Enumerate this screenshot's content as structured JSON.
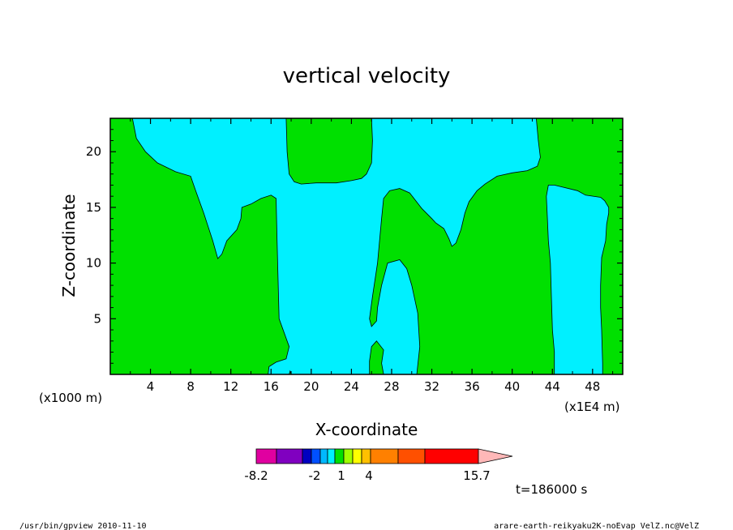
{
  "chart_data": {
    "type": "heatmap",
    "title": "vertical velocity",
    "xlabel": "X-coordinate",
    "ylabel": "Z-coordinate",
    "x_unit_left": "(x1000 m)",
    "x_unit_right": "(x1E4 m)",
    "xlim": [
      0,
      51
    ],
    "ylim": [
      0,
      23
    ],
    "x_ticks": [
      4,
      8,
      12,
      16,
      20,
      24,
      28,
      32,
      36,
      40,
      44,
      48
    ],
    "y_ticks": [
      5,
      10,
      15,
      20
    ],
    "colors": {
      "background_field": "#00e000",
      "downdraft": "#00f0ff"
    },
    "fields": {
      "background_field_value": "1 to 2 (green band)",
      "downdraft_value": "-1 to 1 (cyan band)"
    },
    "cyan_regions": [
      [
        [
          2.2,
          23
        ],
        [
          2.6,
          21.2
        ],
        [
          3.5,
          20.0
        ],
        [
          4.7,
          19.0
        ],
        [
          6.5,
          18.2
        ],
        [
          8.0,
          17.8
        ],
        [
          8.5,
          16.5
        ],
        [
          9.3,
          14.5
        ],
        [
          10.2,
          12.0
        ],
        [
          10.7,
          10.4
        ],
        [
          11.1,
          10.8
        ],
        [
          11.6,
          12.0
        ],
        [
          12.6,
          13.0
        ],
        [
          13.0,
          14.0
        ],
        [
          13.1,
          15.0
        ],
        [
          14.0,
          15.3
        ],
        [
          15.0,
          15.8
        ],
        [
          16.0,
          16.1
        ],
        [
          16.5,
          15.8
        ],
        [
          16.6,
          12.0
        ],
        [
          16.8,
          5.0
        ],
        [
          17.8,
          2.5
        ],
        [
          17.5,
          1.4
        ],
        [
          16.5,
          1.1
        ],
        [
          15.8,
          0.7
        ],
        [
          15.7,
          0
        ],
        [
          17.8,
          0
        ],
        [
          17.9,
          0.3
        ],
        [
          18.0,
          0
        ],
        [
          25.8,
          0
        ],
        [
          25.8,
          1.2
        ],
        [
          26.0,
          2.5
        ],
        [
          26.5,
          3.0
        ],
        [
          27.2,
          2.2
        ],
        [
          27.0,
          1.0
        ],
        [
          27.2,
          0
        ],
        [
          30.5,
          0
        ],
        [
          30.8,
          2.5
        ],
        [
          30.6,
          5.5
        ],
        [
          30.0,
          8.0
        ],
        [
          29.5,
          9.5
        ],
        [
          28.8,
          10.3
        ],
        [
          27.6,
          10.0
        ],
        [
          27.0,
          8.0
        ],
        [
          26.6,
          6.0
        ],
        [
          26.5,
          4.8
        ],
        [
          26.0,
          4.3
        ],
        [
          25.8,
          5.0
        ],
        [
          26.1,
          7.0
        ],
        [
          26.6,
          10.0
        ],
        [
          27.0,
          14.0
        ],
        [
          27.2,
          15.8
        ],
        [
          27.8,
          16.5
        ],
        [
          28.8,
          16.7
        ],
        [
          29.8,
          16.3
        ],
        [
          31.0,
          14.9
        ],
        [
          32.0,
          14.0
        ],
        [
          32.4,
          13.6
        ],
        [
          33.2,
          13.1
        ],
        [
          33.7,
          12.2
        ],
        [
          34.0,
          11.5
        ],
        [
          34.4,
          11.8
        ],
        [
          34.9,
          13.0
        ],
        [
          35.3,
          14.5
        ],
        [
          35.7,
          15.5
        ],
        [
          36.5,
          16.5
        ],
        [
          37.3,
          17.1
        ],
        [
          38.5,
          17.8
        ],
        [
          40.0,
          18.1
        ],
        [
          41.5,
          18.3
        ],
        [
          42.5,
          18.7
        ],
        [
          42.8,
          19.5
        ],
        [
          42.6,
          21.0
        ],
        [
          42.4,
          23
        ],
        [
          26.0,
          23
        ],
        [
          26.1,
          21.0
        ],
        [
          26.0,
          19.0
        ],
        [
          25.5,
          18.0
        ],
        [
          25.0,
          17.6
        ],
        [
          24.0,
          17.4
        ],
        [
          22.5,
          17.2
        ],
        [
          20.5,
          17.2
        ],
        [
          19.0,
          17.1
        ],
        [
          18.3,
          17.3
        ],
        [
          17.8,
          18.0
        ],
        [
          17.6,
          20.0
        ],
        [
          17.5,
          23
        ]
      ],
      [
        [
          43.6,
          17.0
        ],
        [
          44.2,
          17.0
        ],
        [
          46.5,
          16.5
        ],
        [
          47.3,
          16.1
        ],
        [
          48.8,
          15.9
        ],
        [
          49.2,
          15.6
        ],
        [
          49.6,
          15.0
        ],
        [
          49.6,
          14.5
        ],
        [
          49.4,
          13.5
        ],
        [
          49.3,
          12.0
        ],
        [
          48.9,
          10.5
        ],
        [
          48.8,
          8.0
        ],
        [
          48.8,
          6.0
        ],
        [
          48.9,
          4.0
        ],
        [
          49.0,
          1.0
        ],
        [
          49.0,
          0
        ],
        [
          44.2,
          0
        ],
        [
          44.2,
          2.0
        ],
        [
          44.0,
          4.0
        ],
        [
          43.9,
          7.0
        ],
        [
          43.8,
          10.0
        ],
        [
          43.6,
          12.0
        ],
        [
          43.5,
          14.0
        ],
        [
          43.4,
          16.0
        ]
      ]
    ],
    "colorbar": {
      "segments": [
        "#e000a0",
        "#8000c0",
        "#0000c0",
        "#0050ff",
        "#00b8ff",
        "#00f0ff",
        "#00e000",
        "#a0ff00",
        "#ffff00",
        "#ffc000",
        "#ff8000",
        "#ff5000",
        "#ff0000",
        "#ff8080",
        "#ffb8b8"
      ],
      "labels": [
        "-8.2",
        "-2",
        "1",
        "4",
        "15.7"
      ]
    },
    "time_label": "t=186000 s"
  },
  "footer": {
    "left": "/usr/bin/gpview   2010-11-10",
    "right": "arare-earth-reikyaku2K-noEvap_VelZ.nc@VelZ"
  }
}
